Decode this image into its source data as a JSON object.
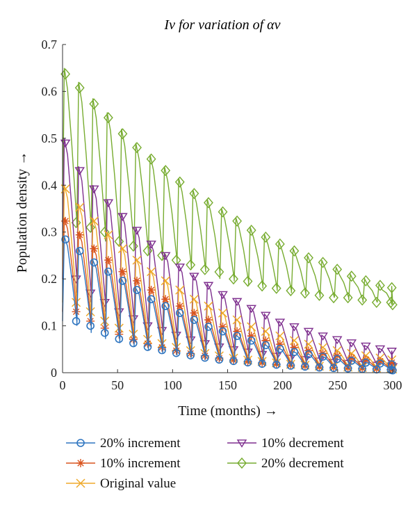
{
  "chart_data": {
    "type": "line",
    "title": "Iν for variation of αν",
    "xlabel": "Time (months) →",
    "ylabel": "Population density →",
    "xlim": [
      0,
      300
    ],
    "ylim": [
      0,
      0.7
    ],
    "x_ticks": [
      "0",
      "50",
      "100",
      "150",
      "200",
      "250",
      "300"
    ],
    "y_ticks": [
      "0",
      "0.1",
      "0.2",
      "0.3",
      "0.4",
      "0.5",
      "0.6",
      "0.7"
    ],
    "grid": false,
    "legend_position": "bottom",
    "series": [
      {
        "name": "20% increment",
        "color": "#2e75c0",
        "marker": "circle",
        "x": [
          0,
          13,
          26,
          39,
          52,
          65,
          78,
          91,
          104,
          117,
          130,
          143,
          156,
          169,
          182,
          195,
          208,
          221,
          234,
          247,
          260,
          273,
          286,
          299
        ],
        "peaks": [
          0.29,
          0.265,
          0.24,
          0.22,
          0.2,
          0.18,
          0.16,
          0.145,
          0.13,
          0.115,
          0.1,
          0.09,
          0.08,
          0.07,
          0.06,
          0.052,
          0.045,
          0.04,
          0.035,
          0.03,
          0.026,
          0.022,
          0.02,
          0.018
        ],
        "troughs": [
          0.11,
          0.1,
          0.085,
          0.072,
          0.063,
          0.055,
          0.048,
          0.042,
          0.037,
          0.032,
          0.028,
          0.025,
          0.022,
          0.019,
          0.017,
          0.015,
          0.013,
          0.011,
          0.01,
          0.009,
          0.008,
          0.007,
          0.006,
          0.005
        ]
      },
      {
        "name": "10% increment",
        "color": "#d9541e",
        "marker": "star",
        "x": [
          0,
          13,
          26,
          39,
          52,
          65,
          78,
          91,
          104,
          117,
          130,
          143,
          156,
          169,
          182,
          195,
          208,
          221,
          234,
          247,
          260,
          273,
          286,
          299
        ],
        "peaks": [
          0.33,
          0.3,
          0.27,
          0.245,
          0.22,
          0.2,
          0.18,
          0.16,
          0.145,
          0.13,
          0.115,
          0.1,
          0.09,
          0.08,
          0.07,
          0.062,
          0.055,
          0.048,
          0.042,
          0.037,
          0.032,
          0.028,
          0.025,
          0.022
        ],
        "troughs": [
          0.13,
          0.11,
          0.095,
          0.082,
          0.071,
          0.062,
          0.054,
          0.047,
          0.041,
          0.036,
          0.031,
          0.027,
          0.024,
          0.021,
          0.018,
          0.016,
          0.014,
          0.012,
          0.011,
          0.01,
          0.009,
          0.008,
          0.007,
          0.006
        ]
      },
      {
        "name": "Original value",
        "color": "#efa92a",
        "marker": "x",
        "x": [
          0,
          13,
          26,
          39,
          52,
          65,
          78,
          91,
          104,
          117,
          130,
          143,
          156,
          169,
          182,
          195,
          208,
          221,
          234,
          247,
          260,
          273,
          286,
          299
        ],
        "peaks": [
          0.4,
          0.36,
          0.33,
          0.3,
          0.27,
          0.245,
          0.22,
          0.2,
          0.18,
          0.16,
          0.145,
          0.13,
          0.115,
          0.1,
          0.09,
          0.08,
          0.07,
          0.062,
          0.055,
          0.048,
          0.042,
          0.037,
          0.032,
          0.028
        ],
        "troughs": [
          0.15,
          0.13,
          0.11,
          0.095,
          0.082,
          0.071,
          0.062,
          0.054,
          0.047,
          0.041,
          0.036,
          0.031,
          0.027,
          0.024,
          0.021,
          0.018,
          0.016,
          0.014,
          0.013,
          0.012,
          0.011,
          0.01,
          0.009,
          0.008
        ]
      },
      {
        "name": "10% decrement",
        "color": "#7e2f8e",
        "marker": "triangle-down",
        "x": [
          0,
          13,
          26,
          39,
          52,
          65,
          78,
          91,
          104,
          117,
          130,
          143,
          156,
          169,
          182,
          195,
          208,
          221,
          234,
          247,
          260,
          273,
          286,
          299
        ],
        "peaks": [
          0.5,
          0.44,
          0.4,
          0.37,
          0.34,
          0.31,
          0.28,
          0.255,
          0.23,
          0.21,
          0.19,
          0.17,
          0.155,
          0.14,
          0.125,
          0.11,
          0.1,
          0.09,
          0.08,
          0.072,
          0.065,
          0.058,
          0.052,
          0.047
        ],
        "troughs": [
          0.2,
          0.17,
          0.15,
          0.13,
          0.115,
          0.1,
          0.09,
          0.08,
          0.07,
          0.062,
          0.055,
          0.049,
          0.044,
          0.039,
          0.035,
          0.031,
          0.028,
          0.025,
          0.022,
          0.02,
          0.018,
          0.016,
          0.014,
          0.013
        ]
      },
      {
        "name": "20% decrement",
        "color": "#77ac30",
        "marker": "diamond",
        "x": [
          0,
          13,
          26,
          39,
          52,
          65,
          78,
          91,
          104,
          117,
          130,
          143,
          156,
          169,
          182,
          195,
          208,
          221,
          234,
          247,
          260,
          273,
          286,
          299
        ],
        "peaks": [
          0.65,
          0.62,
          0.585,
          0.555,
          0.52,
          0.49,
          0.465,
          0.44,
          0.415,
          0.39,
          0.37,
          0.35,
          0.33,
          0.31,
          0.295,
          0.28,
          0.265,
          0.25,
          0.24,
          0.225,
          0.21,
          0.2,
          0.19,
          0.185
        ],
        "troughs": [
          0.32,
          0.31,
          0.3,
          0.28,
          0.27,
          0.26,
          0.25,
          0.24,
          0.23,
          0.22,
          0.215,
          0.2,
          0.195,
          0.185,
          0.18,
          0.175,
          0.17,
          0.165,
          0.16,
          0.16,
          0.155,
          0.15,
          0.15,
          0.145
        ]
      }
    ]
  }
}
